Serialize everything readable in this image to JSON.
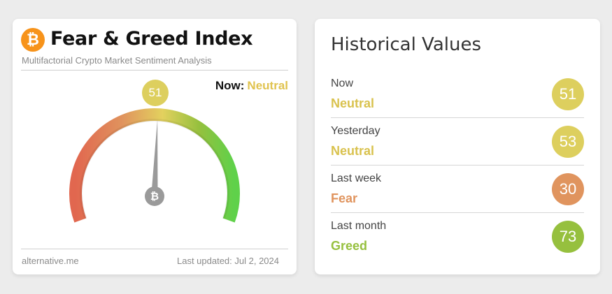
{
  "index_card": {
    "logo_icon": "bitcoin-icon",
    "logo_glyph": "₿",
    "title": "Fear & Greed Index",
    "subtitle": "Multifactorial Crypto Market Sentiment Analysis",
    "now_label": "Now:",
    "now_value": "Neutral",
    "value": "51",
    "gauge_value": 51,
    "gauge_min": 0,
    "gauge_max": 100,
    "source": "alternative.me",
    "last_updated": "Last updated: Jul 2, 2024"
  },
  "history": {
    "title": "Historical Values",
    "rows": [
      {
        "label": "Now",
        "classification": "Neutral",
        "value": "51",
        "color": "#ddcf5e",
        "text_color": "#d9c24e"
      },
      {
        "label": "Yesterday",
        "classification": "Neutral",
        "value": "53",
        "color": "#ddcf5e",
        "text_color": "#d9c24e"
      },
      {
        "label": "Last week",
        "classification": "Fear",
        "value": "30",
        "color": "#e0945e",
        "text_color": "#e0945e"
      },
      {
        "label": "Last month",
        "classification": "Greed",
        "value": "73",
        "color": "#96c03e",
        "text_color": "#96c03e"
      }
    ]
  },
  "colors": {
    "extreme_fear": "#e1674f",
    "fear": "#e0945e",
    "neutral": "#e3d15e",
    "greed": "#96c03e",
    "extreme_greed": "#5fd14a",
    "needle": "#9a9a9a"
  }
}
